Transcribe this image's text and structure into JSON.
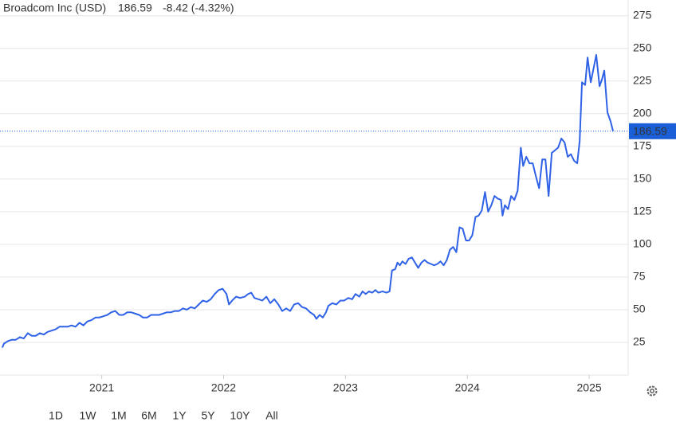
{
  "chart_data": {
    "type": "line",
    "title": "Broadcom Inc (USD)",
    "price": 186.59,
    "change": "-8.42 (-4.32%)",
    "color": "#2f62e6",
    "price_color": "#1a5fd8",
    "change_color": "#e0403a",
    "grid": true,
    "ranges": [
      "1D",
      "1W",
      "1M",
      "6M",
      "1Y",
      "5Y",
      "10Y",
      "All"
    ],
    "active_range": "5Y",
    "xlim": [
      2020.165,
      2025.32
    ],
    "xticks": [
      2021,
      2022,
      2023,
      2024,
      2025
    ],
    "ylim": [
      0,
      287
    ],
    "yticks": [
      25,
      50,
      75,
      100,
      125,
      150,
      175,
      200,
      225,
      250,
      275
    ],
    "x": [
      2020.184,
      2020.197,
      2020.23,
      2020.263,
      2020.295,
      2020.328,
      2020.36,
      2020.393,
      2020.426,
      2020.458,
      2020.491,
      2020.524,
      2020.556,
      2020.589,
      2020.621,
      2020.654,
      2020.687,
      2020.719,
      2020.752,
      2020.785,
      2020.817,
      2020.85,
      2020.882,
      2020.915,
      2020.948,
      2020.98,
      2021.013,
      2021.046,
      2021.078,
      2021.111,
      2021.144,
      2021.176,
      2021.209,
      2021.241,
      2021.274,
      2021.307,
      2021.339,
      2021.372,
      2021.405,
      2021.437,
      2021.47,
      2021.502,
      2021.535,
      2021.568,
      2021.6,
      2021.633,
      2021.666,
      2021.698,
      2021.731,
      2021.763,
      2021.796,
      2021.829,
      2021.861,
      2021.894,
      2021.927,
      2021.959,
      2021.992,
      2022.024,
      2022.044,
      2022.07,
      2022.103,
      2022.135,
      2022.174,
      2022.201,
      2022.227,
      2022.253,
      2022.285,
      2022.318,
      2022.351,
      2022.383,
      2022.416,
      2022.449,
      2022.481,
      2022.514,
      2022.546,
      2022.579,
      2022.612,
      2022.644,
      2022.677,
      2022.71,
      2022.742,
      2022.762,
      2022.788,
      2022.814,
      2022.84,
      2022.86,
      2022.892,
      2022.925,
      2022.958,
      2022.99,
      2023.023,
      2023.055,
      2023.082,
      2023.114,
      2023.14,
      2023.166,
      2023.193,
      2023.219,
      2023.245,
      2023.271,
      2023.304,
      2023.336,
      2023.362,
      2023.382,
      2023.408,
      2023.427,
      2023.447,
      2023.467,
      2023.493,
      2023.519,
      2023.545,
      2023.571,
      2023.597,
      2023.623,
      2023.649,
      2023.675,
      2023.701,
      2023.728,
      2023.754,
      2023.78,
      2023.806,
      2023.832,
      2023.858,
      2023.884,
      2023.91,
      2023.936,
      2023.962,
      2023.989,
      2024.015,
      2024.041,
      2024.067,
      2024.093,
      2024.119,
      2024.145,
      2024.171,
      2024.197,
      2024.223,
      2024.25,
      2024.276,
      2024.289,
      2024.308,
      2024.334,
      2024.36,
      2024.386,
      2024.413,
      2024.439,
      2024.458,
      2024.484,
      2024.51,
      2024.537,
      2024.563,
      2024.589,
      2024.615,
      2024.641,
      2024.667,
      2024.693,
      2024.719,
      2024.745,
      2024.772,
      2024.798,
      2024.824,
      2024.85,
      2024.876,
      2024.902,
      2024.922,
      2024.941,
      2024.967,
      2024.987,
      2025.013,
      2025.039,
      2025.058,
      2025.085,
      2025.104,
      2025.124,
      2025.15,
      2025.176,
      2025.196
    ],
    "values": [
      21,
      24,
      26,
      27,
      27,
      29,
      28,
      32,
      30,
      30,
      32,
      31,
      33,
      34,
      35,
      37,
      37,
      37,
      38,
      37,
      40,
      38,
      41,
      42,
      44,
      44,
      45,
      46,
      48,
      49,
      46,
      46,
      48,
      48,
      47,
      46,
      44,
      44,
      46,
      46,
      46,
      47,
      48,
      48,
      49,
      49,
      51,
      50,
      52,
      51,
      54,
      57,
      56,
      58,
      62,
      65,
      66,
      62,
      54,
      57,
      60,
      59,
      60,
      62,
      63,
      59,
      58,
      57,
      60,
      55,
      58,
      54,
      49,
      51,
      49,
      54,
      55,
      52,
      51,
      48,
      46,
      43,
      46,
      44,
      48,
      53,
      55,
      54,
      57,
      57,
      59,
      58,
      62,
      60,
      64,
      62,
      64,
      63,
      65,
      63,
      64,
      63,
      64,
      80,
      81,
      86,
      84,
      87,
      85,
      89,
      90,
      86,
      82,
      86,
      88,
      86,
      85,
      84,
      85,
      87,
      84,
      88,
      96,
      98,
      94,
      113,
      112,
      103,
      103,
      107,
      121,
      122,
      126,
      140,
      125,
      130,
      137,
      135,
      134,
      122,
      130,
      127,
      137,
      134,
      141,
      174,
      160,
      167,
      162,
      162,
      152,
      143,
      165,
      165,
      137,
      170,
      172,
      174,
      181,
      178,
      167,
      169,
      164,
      162,
      179,
      224,
      222,
      243,
      224,
      236,
      245,
      221,
      226,
      233,
      201,
      194,
      186.59
    ]
  }
}
